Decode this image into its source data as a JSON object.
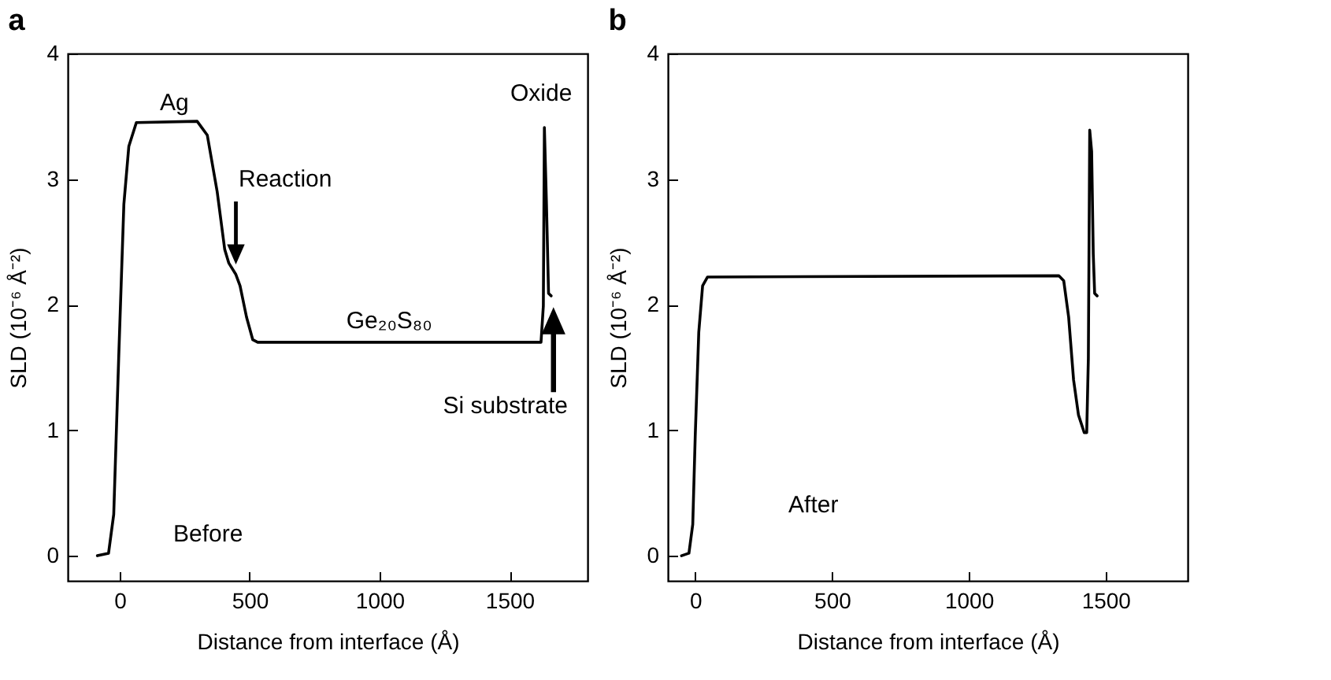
{
  "chart_data": [
    {
      "type": "line",
      "title": "a",
      "xlabel": "Distance from interface (Å)",
      "ylabel": "SLD (10⁻⁶ Å⁻²)",
      "xlim": [
        -200,
        1800
      ],
      "xticks": [
        0,
        500,
        1000,
        1500
      ],
      "ylim": [
        -0.2,
        4
      ],
      "yticks": [
        0,
        1,
        2,
        3,
        4
      ],
      "x": [
        -86,
        -43,
        -23,
        -4,
        16,
        35,
        64,
        298,
        337,
        375,
        404,
        420,
        447,
        463,
        488,
        512,
        531,
        1621,
        1630,
        1634,
        1642,
        1650,
        1660
      ],
      "series": [
        {
          "color": "#000000",
          "values": [
            0,
            0.02,
            0.33,
            1.57,
            2.8,
            3.26,
            3.45,
            3.46,
            3.35,
            2.9,
            2.44,
            2.33,
            2.24,
            2.15,
            1.9,
            1.72,
            1.7,
            1.7,
            1.99,
            3.41,
            2.8,
            2.09,
            2.07
          ]
        }
      ],
      "annotations": [
        {
          "text": "Ag",
          "x": 210,
          "y": 3.46
        },
        "Reaction",
        {
          "text": "Ge₂₀S₈₀",
          "x": 1037,
          "y": 1.7
        },
        {
          "text": "Oxide",
          "x": 1634,
          "y": 3.41
        },
        "Si substrate",
        "Before"
      ]
    },
    {
      "type": "line",
      "title": "b",
      "xlabel": "Distance from interface (Å)",
      "ylabel": "SLD (10⁻⁶ Å⁻²)",
      "xlim": [
        -100,
        1800
      ],
      "xticks": [
        0,
        500,
        1000,
        1500
      ],
      "ylim": [
        -0.2,
        4
      ],
      "yticks": [
        0,
        1,
        2,
        3,
        4
      ],
      "x": [
        -50,
        -23,
        -9,
        0,
        13,
        27,
        45,
        1329,
        1347,
        1365,
        1383,
        1401,
        1422,
        1431,
        1437,
        1442,
        1449,
        1455,
        1460,
        1469
      ],
      "series": [
        {
          "color": "#000000",
          "values": [
            0,
            0.02,
            0.25,
            0.95,
            1.78,
            2.15,
            2.22,
            2.23,
            2.19,
            1.9,
            1.4,
            1.12,
            0.98,
            0.98,
            1.57,
            3.39,
            3.22,
            2.4,
            2.09,
            2.07
          ]
        }
      ],
      "annotations": [
        "After"
      ]
    }
  ]
}
